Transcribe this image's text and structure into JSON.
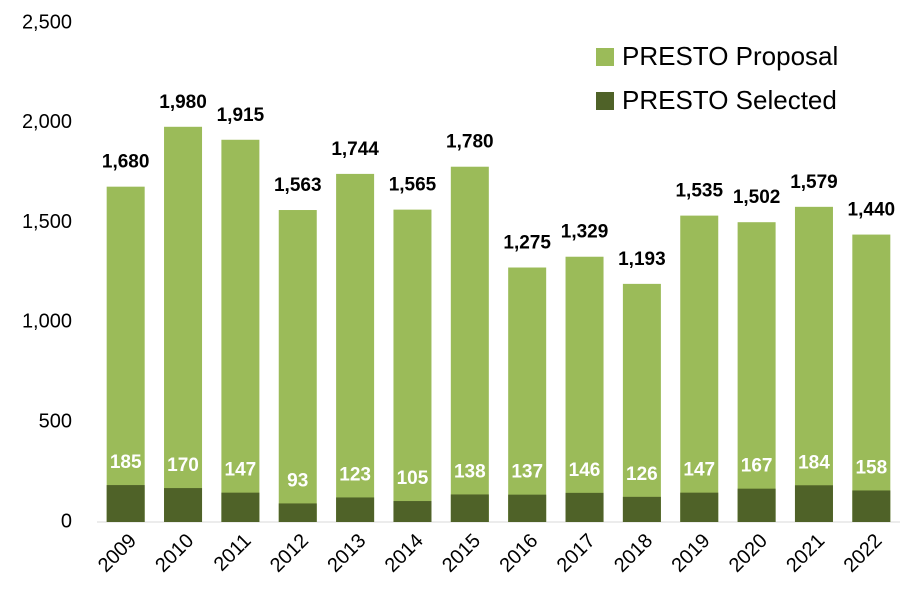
{
  "chart_data": {
    "type": "bar",
    "categories": [
      "2009",
      "2010",
      "2011",
      "2012",
      "2013",
      "2014",
      "2015",
      "2016",
      "2017",
      "2018",
      "2019",
      "2020",
      "2021",
      "2022"
    ],
    "series": [
      {
        "name": "PRESTO Proposal",
        "color": "#9bbb59",
        "values": [
          1680,
          1980,
          1915,
          1563,
          1744,
          1565,
          1780,
          1275,
          1329,
          1193,
          1535,
          1502,
          1579,
          1440
        ],
        "value_labels": [
          "1,680",
          "1,980",
          "1,915",
          "1,563",
          "1,744",
          "1,565",
          "1,780",
          "1,275",
          "1,329",
          "1,193",
          "1,535",
          "1,502",
          "1,579",
          "1,440"
        ]
      },
      {
        "name": "PRESTO Selected",
        "color": "#4f6228",
        "values": [
          185,
          170,
          147,
          93,
          123,
          105,
          138,
          137,
          146,
          126,
          147,
          167,
          184,
          158
        ]
      }
    ],
    "ylim": [
      0,
      2500
    ],
    "yticks": [
      0,
      500,
      {
        "value": 1000,
        "label": "1,000"
      },
      {
        "value": 1500,
        "label": "1,500"
      },
      {
        "value": 2000,
        "label": "2,000"
      },
      {
        "value": 2500,
        "label": "2,500"
      }
    ],
    "legend": "top-right"
  }
}
